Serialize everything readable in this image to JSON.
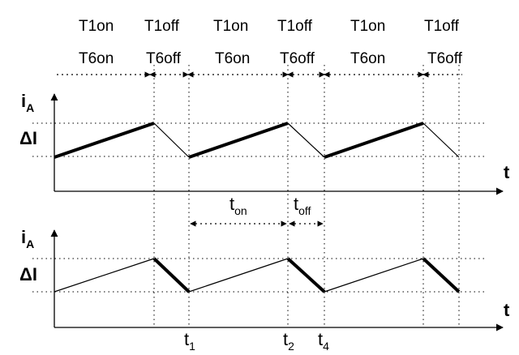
{
  "state_labels": {
    "row1": [
      "T1on",
      "T1off",
      "T1on",
      "T1off",
      "T1on",
      "T1off"
    ],
    "row2": [
      "T6on",
      "T6off",
      "T6on",
      "T6off",
      "T6on",
      "T6off"
    ]
  },
  "top_plot": {
    "y_label": "i",
    "y_label_sub": "A",
    "delta_label": "ΔI",
    "x_label": "t",
    "durations": {
      "t_on": {
        "base": "t",
        "sub": "on"
      },
      "t_off": {
        "base": "t",
        "sub": "off"
      }
    }
  },
  "bottom_plot": {
    "y_label": "i",
    "y_label_sub": "A",
    "delta_label": "ΔI",
    "x_label": "t"
  },
  "time_marks": [
    {
      "base": "t",
      "sub": "1"
    },
    {
      "base": "t",
      "sub": "2"
    },
    {
      "base": "t",
      "sub": "4"
    }
  ]
}
